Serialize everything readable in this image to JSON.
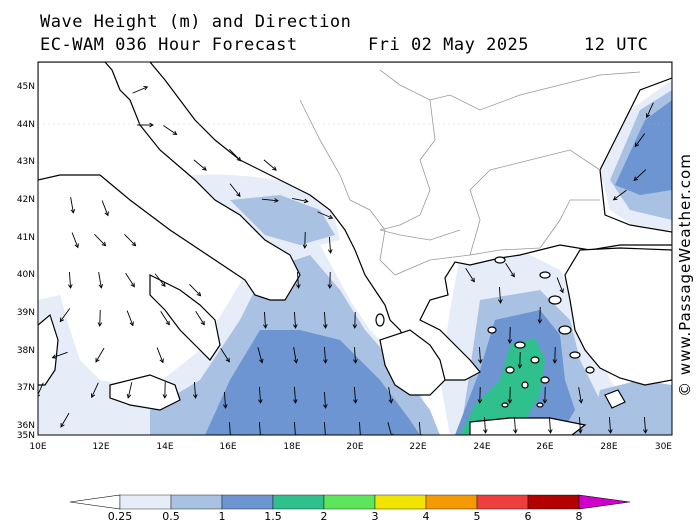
{
  "header": {
    "line1": "Wave Height (m) and Direction",
    "model": "EC-WAM 036 Hour Forecast",
    "date": "Fri 02 May 2025",
    "time": "12 UTC"
  },
  "credit": "© www.PassageWeather.com",
  "axes": {
    "lon_labels": [
      "10E",
      "12E",
      "14E",
      "16E",
      "18E",
      "20E",
      "22E",
      "24E",
      "26E",
      "28E",
      "30E"
    ],
    "lat_labels": [
      "45N",
      "44N",
      "43N",
      "42N",
      "41N",
      "40N",
      "39N",
      "38N",
      "37N",
      "36N",
      "35N"
    ],
    "lon_range": [
      10,
      30
    ],
    "lat_range": [
      35,
      45.6
    ]
  },
  "colorbar": {
    "labels": [
      "0.25",
      "0.5",
      "1",
      "1.5",
      "2",
      "3",
      "4",
      "5",
      "6",
      "8"
    ],
    "colors": [
      "#e6edf8",
      "#a9c1e2",
      "#6c95d1",
      "#30c08e",
      "#5ce65c",
      "#f0e400",
      "#f59a00",
      "#ee3e3e",
      "#b30000",
      "#d000c8"
    ]
  },
  "colors": {
    "land": "#ffffff",
    "coast": "#000000",
    "border": "#999999"
  }
}
